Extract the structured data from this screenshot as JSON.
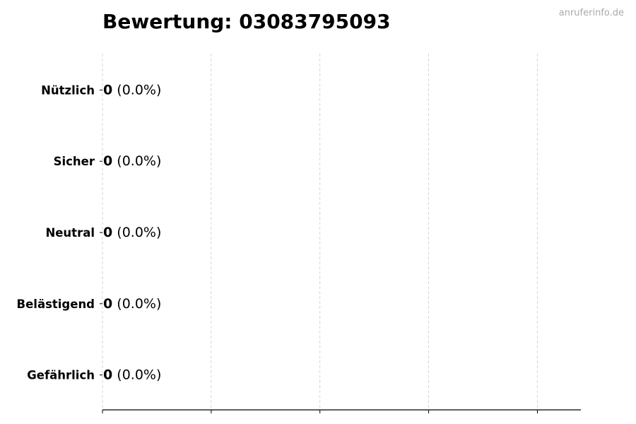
{
  "watermark": "anruferinfo.de",
  "chart_data": {
    "type": "bar",
    "orientation": "horizontal",
    "title": "Bewertung: 03083795093",
    "categories": [
      "Nützlich",
      "Sicher",
      "Neutral",
      "Belästigend",
      "Gefährlich"
    ],
    "values": [
      0,
      0,
      0,
      0,
      0
    ],
    "percent_labels": [
      "(0.0%)",
      "(0.0%)",
      "(0.0%)",
      "(0.0%)",
      "(0.0%)"
    ],
    "xlabel": "",
    "ylabel": "",
    "xlim": [
      0,
      4.4
    ],
    "x_ticks": [
      0,
      1,
      2,
      3,
      4
    ],
    "x_tick_labels_shown": false,
    "grid": "x-dashed",
    "colors": {
      "bar_edge": "#333333",
      "grid": "#cccccc",
      "axis": "#000000",
      "watermark": "#aaaaaa"
    }
  }
}
